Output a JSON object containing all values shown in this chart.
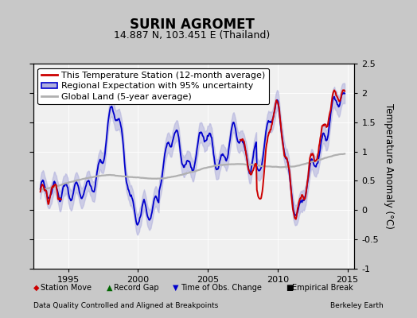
{
  "title": "SURIN AGROMET",
  "subtitle": "14.887 N, 103.451 E (Thailand)",
  "ylabel": "Temperature Anomaly (°C)",
  "xlabel_left": "Data Quality Controlled and Aligned at Breakpoints",
  "xlabel_right": "Berkeley Earth",
  "xlim": [
    1992.5,
    2015.5
  ],
  "ylim": [
    -1.0,
    2.5
  ],
  "yticks": [
    -1.0,
    -0.5,
    0.0,
    0.5,
    1.0,
    1.5,
    2.0,
    2.5
  ],
  "xticks": [
    1995,
    2000,
    2005,
    2010,
    2015
  ],
  "bg_color": "#c8c8c8",
  "plot_bg_color": "#f0f0f0",
  "legend_line1": "This Temperature Station (12-month average)",
  "legend_line2": "Regional Expectation with 95% uncertainty",
  "legend_line3": "Global Land (5-year average)",
  "station_line_color": "#cc0000",
  "regional_line_color": "#0000cc",
  "regional_fill_color": "#b0b0dd",
  "global_line_color": "#b0b0b0",
  "title_fontsize": 12,
  "subtitle_fontsize": 9,
  "axis_fontsize": 8,
  "legend_fontsize": 8
}
